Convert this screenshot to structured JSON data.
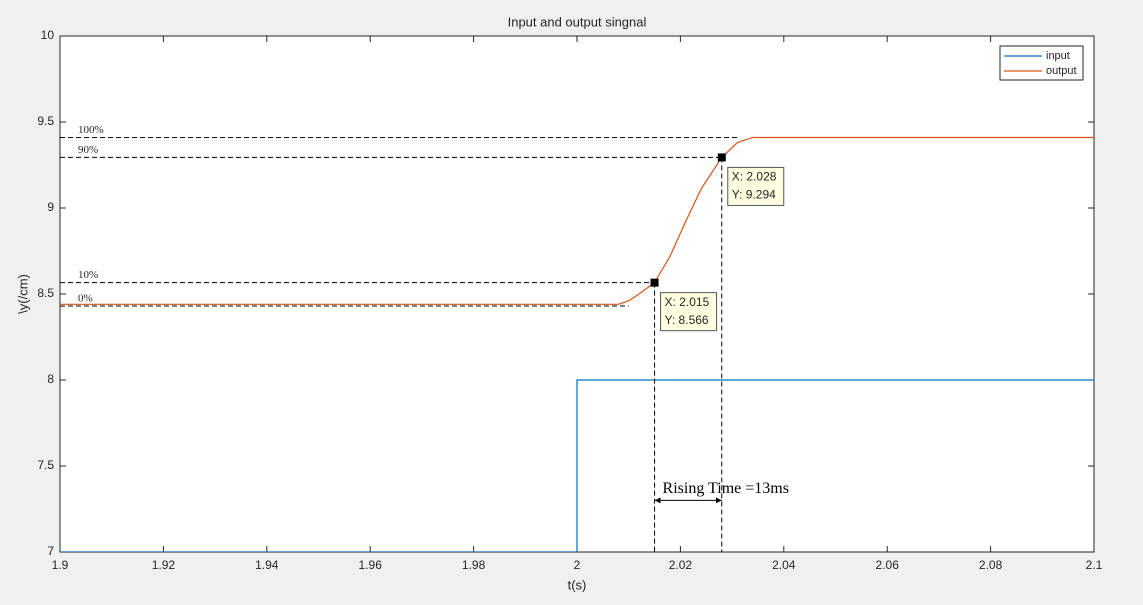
{
  "chart_data": {
    "type": "line",
    "title": "Input and output singnal",
    "x_label": "t(s)",
    "y_label": "\\y(/cm)",
    "xlim": [
      1.9,
      2.1
    ],
    "ylim": [
      7,
      10
    ],
    "xticks": [
      1.9,
      1.92,
      1.94,
      1.96,
      1.98,
      2,
      2.02,
      2.04,
      2.06,
      2.08,
      2.1
    ],
    "yticks": [
      7,
      7.5,
      8,
      8.5,
      9,
      9.5,
      10
    ],
    "legend": "top-right",
    "series": [
      {
        "name": "input",
        "color": "#0072bd",
        "x": [
          1.9,
          2.0,
          2.0,
          2.1
        ],
        "values": [
          7,
          7,
          8,
          8
        ]
      },
      {
        "name": "output",
        "color": "#d95319",
        "x": [
          1.9,
          2.0,
          2.008,
          2.01,
          2.012,
          2.015,
          2.018,
          2.021,
          2.024,
          2.028,
          2.031,
          2.034,
          2.04,
          2.1
        ],
        "values": [
          8.44,
          8.44,
          8.44,
          8.46,
          8.5,
          8.566,
          8.72,
          8.92,
          9.11,
          9.294,
          9.38,
          9.41,
          9.41,
          9.41
        ]
      }
    ],
    "reference_lines": [
      {
        "label": "100%",
        "y": 9.41,
        "x_end": 2.0315
      },
      {
        "label": "90%",
        "y": 9.294,
        "x_end": 2.028
      },
      {
        "label": "10%",
        "y": 8.566,
        "x_end": 2.015
      },
      {
        "label": "0%",
        "y": 8.43,
        "x_end": 2.01
      }
    ],
    "datatips": [
      {
        "x": 2.028,
        "y": 9.294,
        "x_label": "X: 2.028",
        "y_label": "Y: 9.294"
      },
      {
        "x": 2.015,
        "y": 8.566,
        "x_label": "X: 2.015",
        "y_label": "Y: 8.566"
      }
    ],
    "rising_time": {
      "label": "Rising Time =13ms",
      "y": 7.3
    }
  }
}
